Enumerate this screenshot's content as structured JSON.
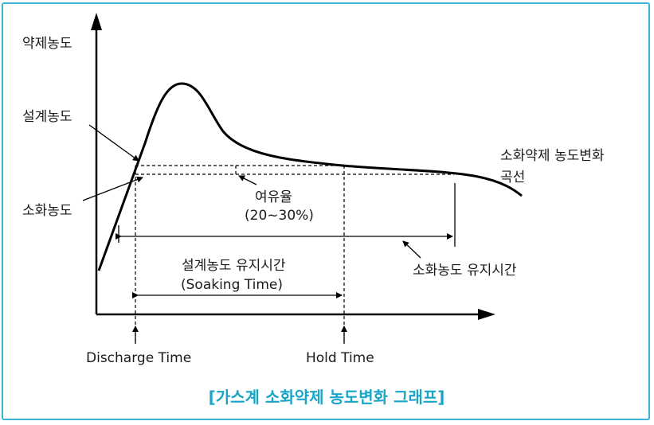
{
  "labels": {
    "y_axis": "약제농도",
    "design_conc": "설계농도",
    "extinguish_conc": "소화농도",
    "curve_name_1": "소화약제 농도변화",
    "curve_name_2": "곡선",
    "margin_1": "여유율",
    "margin_2": "(20~30%)",
    "extinguish_hold": "소화농도 유지시간",
    "soak_1": "설계농도 유지시간",
    "soak_2": "(Soaking Time)",
    "discharge": "Discharge Time",
    "hold": "Hold Time"
  },
  "caption": "[가스계 소화약제 농도변화 그래프]",
  "colors": {
    "frame": "#39b4d6",
    "caption": "#1aa5c8",
    "line": "#000000"
  }
}
